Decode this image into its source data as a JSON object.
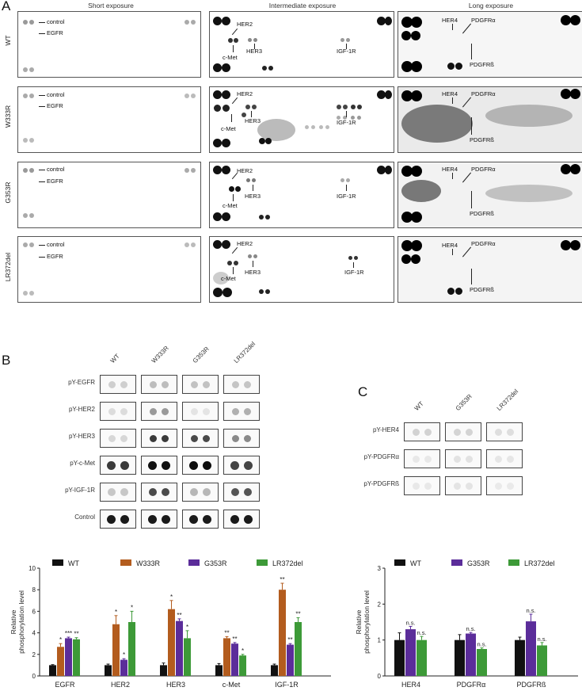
{
  "panel_letters": {
    "a": "A",
    "b": "B",
    "c": "C"
  },
  "panel_a": {
    "columns": [
      "Short exposure",
      "Intermediate exposure",
      "Long exposure"
    ],
    "rows": [
      "WT",
      "W333R",
      "G353R",
      "LR372del"
    ],
    "short_labels": {
      "control": "control",
      "egfr": "EGFR"
    },
    "inter_labels": {
      "her2": "HER2",
      "her3": "HER3",
      "cmet": "c-Met",
      "igf1r": "IGF-1R"
    },
    "long_labels": {
      "her4": "HER4",
      "pdgfra": "PDGFRα",
      "pdgfrb": "PDGFRß"
    }
  },
  "panel_b_blots": {
    "columns": [
      "WT",
      "W333R",
      "G353R",
      "LR372del"
    ],
    "rows": [
      "pY-EGFR",
      "pY-HER2",
      "pY-HER3",
      "pY-c-Met",
      "pY-IGF-1R",
      "Control"
    ]
  },
  "panel_c_blots": {
    "columns": [
      "WT",
      "G353R",
      "LR372del"
    ],
    "rows": [
      "pY-HER4",
      "pY-PDGFRα",
      "pY-PDGFRß"
    ]
  },
  "chart_data": [
    {
      "type": "bar",
      "categories": [
        "EGFR",
        "HER2",
        "HER3",
        "c-Met",
        "IGF-1R"
      ],
      "ylabel": "Relative phosphorylation level",
      "ylim": [
        0,
        10
      ],
      "yticks": [
        0,
        2,
        4,
        6,
        8,
        10
      ],
      "legend": "top",
      "series": [
        {
          "name": "WT",
          "color": "#111111",
          "values": [
            1.0,
            1.0,
            1.0,
            1.0,
            1.0
          ],
          "errors": [
            0.05,
            0.1,
            0.2,
            0.15,
            0.1
          ],
          "sig": [
            "",
            "",
            "",
            "",
            ""
          ]
        },
        {
          "name": "W333R",
          "color": "#b35c1e",
          "values": [
            2.7,
            4.8,
            6.2,
            3.5,
            8.0
          ],
          "errors": [
            0.3,
            0.8,
            0.8,
            0.15,
            0.6
          ],
          "sig": [
            "*",
            "*",
            "*",
            "**",
            "**"
          ]
        },
        {
          "name": "G353R",
          "color": "#5b2d9a",
          "values": [
            3.5,
            1.5,
            5.1,
            3.0,
            2.9
          ],
          "errors": [
            0.1,
            0.1,
            0.2,
            0.1,
            0.1
          ],
          "sig": [
            "***",
            "*",
            "**",
            "**",
            "**"
          ]
        },
        {
          "name": "LR372del",
          "color": "#3d9a38",
          "values": [
            3.4,
            5.0,
            3.5,
            1.9,
            5.0
          ],
          "errors": [
            0.15,
            1.0,
            0.7,
            0.1,
            0.4
          ],
          "sig": [
            "**",
            "*",
            "*",
            "*",
            "**"
          ]
        }
      ]
    },
    {
      "type": "bar",
      "categories": [
        "HER4",
        "PDGFRα",
        "PDGFRß"
      ],
      "ylabel": "Relative phosphorylation level",
      "ylim": [
        0,
        3
      ],
      "yticks": [
        0,
        1,
        2,
        3
      ],
      "legend": "top",
      "series": [
        {
          "name": "WT",
          "color": "#111111",
          "values": [
            1.0,
            1.0,
            1.0
          ],
          "errors": [
            0.2,
            0.15,
            0.08
          ],
          "sig": [
            "",
            "",
            ""
          ]
        },
        {
          "name": "G353R",
          "color": "#5b2d9a",
          "values": [
            1.3,
            1.18,
            1.52
          ],
          "errors": [
            0.08,
            0.03,
            0.2
          ],
          "sig": [
            "n.s.",
            "n.s.",
            "n.s."
          ]
        },
        {
          "name": "LR372del",
          "color": "#3d9a38",
          "values": [
            1.0,
            0.75,
            0.85
          ],
          "errors": [
            0.1,
            0.03,
            0.08
          ],
          "sig": [
            "n.s.",
            "n.s.",
            "n.s."
          ]
        }
      ]
    }
  ]
}
